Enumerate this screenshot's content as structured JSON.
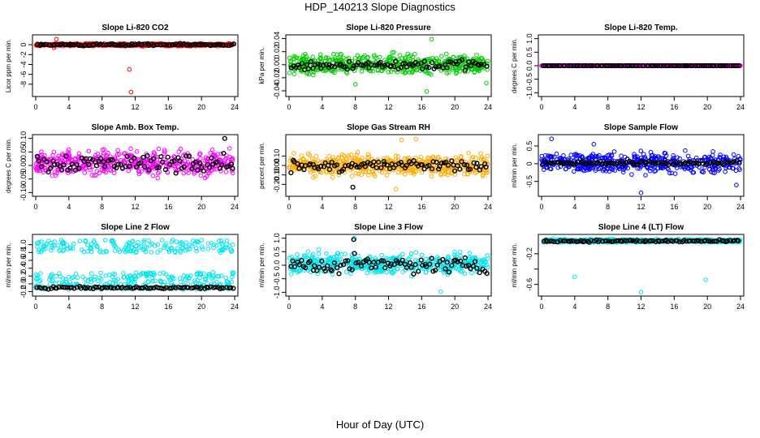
{
  "page": {
    "title": "HDP_140213  Slope Diagnostics",
    "xlabel": "Hour of Day (UTC)"
  },
  "chart_data": [
    {
      "type": "scatter",
      "title": "Slope Li-820 CO2",
      "ylabel": "Licor ppm per min.",
      "xlim": [
        0,
        24
      ],
      "ylim": [
        -10,
        1.5
      ],
      "xticks": [
        0,
        4,
        8,
        12,
        16,
        20,
        24
      ],
      "yticks": [
        0,
        -2,
        -4,
        -6,
        -8
      ],
      "ytick_labels": [
        "0",
        "-2",
        "-4",
        "-6",
        "-8"
      ],
      "series": [
        {
          "name": "all",
          "color": "#ff0000",
          "style": "dense",
          "center": 0,
          "spread": 0.35,
          "outliers": [
            [
              2.5,
              1.1
            ],
            [
              11.3,
              -5.0
            ],
            [
              11.5,
              -9.6
            ],
            [
              2.2,
              -0.6
            ]
          ]
        },
        {
          "name": "hourly",
          "color": "#000000",
          "center": 0,
          "spread": 0.3,
          "outliers": []
        }
      ]
    },
    {
      "type": "scatter",
      "title": "Slope Li-820 Pressure",
      "ylabel": "kPa per min.",
      "xlim": [
        0,
        24
      ],
      "ylim": [
        -0.045,
        0.042
      ],
      "xticks": [
        0,
        4,
        8,
        12,
        16,
        20,
        24
      ],
      "yticks": [
        -0.04,
        -0.02,
        0,
        0.02,
        0.04
      ],
      "ytick_labels": [
        "-0.04",
        "-0.02",
        "0.00",
        "0.02",
        "0.04"
      ],
      "series": [
        {
          "name": "all",
          "color": "#00cc00",
          "style": "dense",
          "center": 0,
          "spread": 0.022,
          "outliers": [
            [
              17.2,
              0.039
            ],
            [
              16.6,
              -0.041
            ],
            [
              8.0,
              -0.03
            ],
            [
              23.8,
              -0.028
            ]
          ]
        },
        {
          "name": "hourly",
          "color": "#000000",
          "center": 0,
          "spread": 0.012,
          "outliers": []
        }
      ]
    },
    {
      "type": "scatter",
      "title": "Slope Li-820 Temp.",
      "ylabel": "degrees C per min.",
      "xlim": [
        0,
        24
      ],
      "ylim": [
        -1.05,
        1.05
      ],
      "xticks": [
        0,
        4,
        8,
        12,
        16,
        20,
        24
      ],
      "yticks": [
        -1,
        -0.5,
        0,
        0.5,
        1
      ],
      "ytick_labels": [
        "-1.0",
        "-0.5",
        "0.0",
        "0.5",
        "1.0"
      ],
      "series": [
        {
          "name": "all",
          "color": "#ff00ff",
          "style": "line",
          "center": 0,
          "spread": 0,
          "outliers": []
        },
        {
          "name": "hourly",
          "color": "#000000",
          "center": 0,
          "spread": 0,
          "outliers": []
        }
      ]
    },
    {
      "type": "scatter",
      "title": "Slope Amb. Box Temp.",
      "ylabel": "degrees C per min.",
      "xlim": [
        0,
        24
      ],
      "ylim": [
        -0.105,
        0.105
      ],
      "xticks": [
        0,
        4,
        8,
        12,
        16,
        20,
        24
      ],
      "yticks": [
        -0.1,
        -0.05,
        0,
        0.05,
        0.1
      ],
      "ytick_labels": [
        "-0.10",
        "-0.05",
        "0.00",
        "0.05",
        "0.10"
      ],
      "series": [
        {
          "name": "all",
          "color": "#ff00ff",
          "style": "dense",
          "center": 0.01,
          "spread": 0.065,
          "outliers": []
        },
        {
          "name": "hourly",
          "color": "#000000",
          "center": 0.01,
          "spread": 0.05,
          "outliers": [
            [
              22.8,
              0.1
            ]
          ]
        }
      ]
    },
    {
      "type": "scatter",
      "title": "Slope Gas Stream RH",
      "ylabel": "percent per min.",
      "xlim": [
        0,
        24
      ],
      "ylim": [
        -0.3,
        0.3
      ],
      "xticks": [
        0,
        4,
        8,
        12,
        16,
        20,
        24
      ],
      "yticks": [
        -0.2,
        -0.1,
        0,
        0.1
      ],
      "ytick_labels": [
        "-0.20",
        "-0.10",
        "0.00",
        "0.10"
      ],
      "series": [
        {
          "name": "all",
          "color": "#ffaa00",
          "style": "dense",
          "center": 0,
          "spread": 0.16,
          "outliers": [
            [
              15.3,
              0.28
            ],
            [
              12.9,
              -0.25
            ],
            [
              13.6,
              0.27
            ]
          ]
        },
        {
          "name": "hourly",
          "color": "#000000",
          "center": 0,
          "spread": 0.09,
          "outliers": [
            [
              7.7,
              -0.23
            ]
          ]
        }
      ]
    },
    {
      "type": "scatter",
      "title": "Slope Sample Flow",
      "ylabel": "ml/min per min.",
      "xlim": [
        0,
        24
      ],
      "ylim": [
        -0.85,
        0.75
      ],
      "xticks": [
        0,
        4,
        8,
        12,
        16,
        20,
        24
      ],
      "yticks": [
        -0.5,
        0,
        0.5
      ],
      "ytick_labels": [
        "-0.5",
        "0",
        "0.5"
      ],
      "series": [
        {
          "name": "all",
          "color": "#0000ff",
          "style": "dense",
          "center": 0.02,
          "spread": 0.4,
          "outliers": [
            [
              1.2,
              0.7
            ],
            [
              12.0,
              -0.82
            ],
            [
              23.5,
              -0.6
            ],
            [
              6.3,
              0.55
            ]
          ]
        },
        {
          "name": "hourly",
          "color": "#000000",
          "center": 0.02,
          "spread": 0.08,
          "outliers": []
        }
      ]
    },
    {
      "type": "scatter",
      "title": "Slope Line 2 Flow",
      "ylabel": "ml/min per min.",
      "xlim": [
        0,
        24
      ],
      "ylim": [
        -0.25,
        1.2
      ],
      "xticks": [
        0,
        4,
        8,
        12,
        16,
        20,
        24
      ],
      "yticks": [
        -0.2,
        0,
        0.2,
        0.4,
        0.6,
        0.8,
        1
      ],
      "ytick_labels": [
        "-0.2",
        "0.0",
        "0.2",
        "0.4",
        "0.6",
        "0.8",
        "1.0"
      ],
      "series": [
        {
          "name": "all",
          "color": "#00e5ee",
          "style": "bands",
          "center": 0,
          "spread": 0.15,
          "bands": [
            [
              0.8,
              1.12
            ],
            [
              -0.15,
              0.3
            ]
          ],
          "outliers": []
        },
        {
          "name": "hourly",
          "color": "#000000",
          "center": -0.1,
          "spread": 0.04,
          "outliers": []
        }
      ]
    },
    {
      "type": "scatter",
      "title": "Slope Line 3 Flow",
      "ylabel": "ml/min per min.",
      "xlim": [
        0,
        24
      ],
      "ylim": [
        -1.05,
        1.05
      ],
      "xticks": [
        0,
        4,
        8,
        12,
        16,
        20,
        24
      ],
      "yticks": [
        -1,
        -0.5,
        0,
        0.5,
        1
      ],
      "ytick_labels": [
        "-1.0",
        "-0.5",
        "0.0",
        "0.5",
        "1.0"
      ],
      "series": [
        {
          "name": "all",
          "color": "#00e5ee",
          "style": "dense",
          "center": 0.05,
          "spread": 0.55,
          "outliers": [
            [
              7.9,
              1.0
            ],
            [
              18.3,
              -0.98
            ]
          ]
        },
        {
          "name": "hourly",
          "color": "#000000",
          "center": 0.0,
          "spread": 0.45,
          "outliers": [
            [
              7.8,
              0.95
            ]
          ]
        }
      ]
    },
    {
      "type": "scatter",
      "title": "Slope Line 4 (LT) Flow",
      "ylabel": "ml/min per min.",
      "xlim": [
        0,
        24
      ],
      "ylim": [
        -0.72,
        0.02
      ],
      "xticks": [
        0,
        4,
        8,
        12,
        16,
        20,
        24
      ],
      "yticks": [
        -0.6,
        -0.4,
        -0.2
      ],
      "ytick_labels": [
        "-0.6",
        "",
        "-0.2"
      ],
      "series": [
        {
          "name": "all",
          "color": "#00e5ee",
          "style": "dense",
          "center": -0.03,
          "spread": 0.03,
          "outliers": [
            [
              4.0,
              -0.5
            ],
            [
              12.0,
              -0.7
            ],
            [
              19.8,
              -0.54
            ]
          ]
        },
        {
          "name": "hourly",
          "color": "#000000",
          "center": -0.035,
          "spread": 0.02,
          "outliers": []
        }
      ]
    }
  ]
}
